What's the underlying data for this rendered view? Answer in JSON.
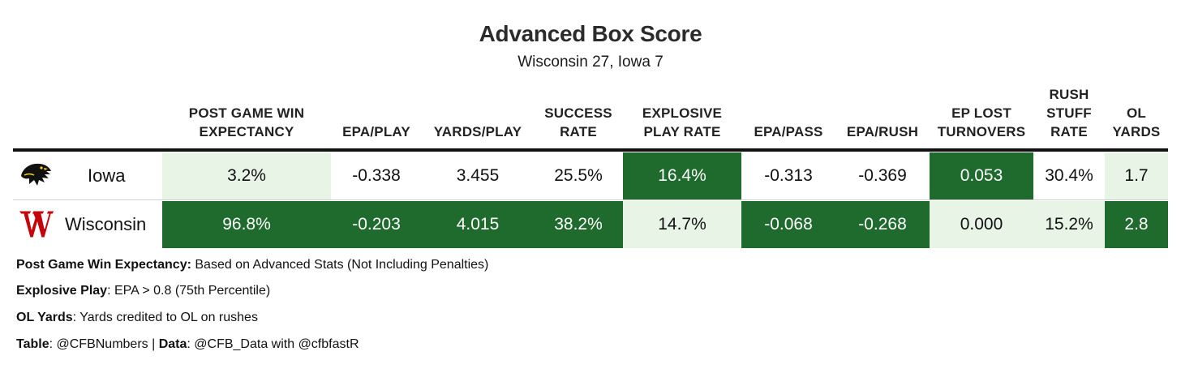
{
  "title": "Advanced Box Score",
  "subtitle": "Wisconsin 27, Iowa 7",
  "colors": {
    "dark_green": "#1e6b2d",
    "light_green": "#e8f5e6",
    "iowa_gold": "#fbd417",
    "wisconsin_red": "#c5050c"
  },
  "chart_data": {
    "type": "table",
    "columns": [
      "POST GAME WIN\nEXPECTANCY",
      "EPA/PLAY",
      "YARDS/PLAY",
      "SUCCESS\nRATE",
      "EXPLOSIVE\nPLAY RATE",
      "EPA/PASS",
      "EPA/RUSH",
      "EP LOST\nTURNOVERS",
      "RUSH\nSTUFF\nRATE",
      "OL\nYARDS"
    ],
    "rows": [
      {
        "team": "Iowa",
        "logo_icon": "iowa-hawkeye-logo-icon",
        "values": [
          "3.2%",
          "-0.338",
          "3.455",
          "25.5%",
          "16.4%",
          "-0.313",
          "-0.369",
          "0.053",
          "30.4%",
          "1.7"
        ],
        "shade": [
          "light",
          "none",
          "none",
          "none",
          "dark",
          "none",
          "none",
          "dark",
          "none",
          "light"
        ]
      },
      {
        "team": "Wisconsin",
        "logo_icon": "wisconsin-motion-w-logo-icon",
        "values": [
          "96.8%",
          "-0.203",
          "4.015",
          "38.2%",
          "14.7%",
          "-0.068",
          "-0.268",
          "0.000",
          "15.2%",
          "2.8"
        ],
        "shade": [
          "dark",
          "dark",
          "dark",
          "dark",
          "light",
          "dark",
          "dark",
          "light",
          "light",
          "dark"
        ]
      }
    ]
  },
  "notes": [
    {
      "label": "Post Game Win Expectancy",
      "text": " Based on Advanced Stats (Not Including Penalties)"
    },
    {
      "label": "Explosive Play",
      "text": ": EPA > 0.8 (75th Percentile)"
    },
    {
      "label": "OL Yards",
      "text": ": Yards credited to OL on rushes"
    }
  ],
  "credits": {
    "table_label": "Table",
    "table_text": ": @CFBNumbers | ",
    "data_label": "Data",
    "data_text": ": @CFB_Data with @cfbfastR"
  }
}
